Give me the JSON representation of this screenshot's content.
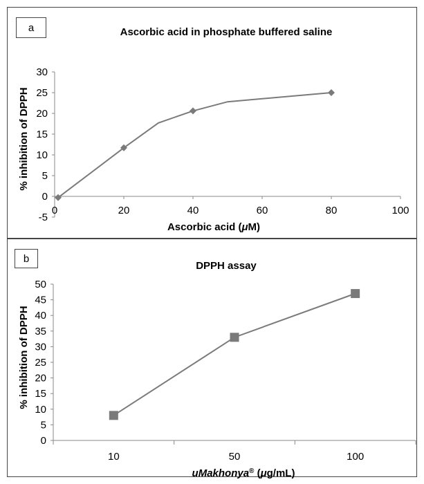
{
  "chart_data": [
    {
      "type": "line",
      "panel_label": "a",
      "title": "Ascorbic acid in phosphate buffered saline",
      "xlabel_main": "Ascorbic acid (",
      "xlabel_unit_mu": "μ",
      "xlabel_tail": "M)",
      "ylabel": "% inhibition of DPPH",
      "xlim": [
        0,
        100
      ],
      "ylim": [
        -5,
        30
      ],
      "xticks": [
        "0",
        "20",
        "40",
        "60",
        "80",
        "100"
      ],
      "yticks": [
        "30",
        "25",
        "20",
        "15",
        "10",
        "5",
        "0",
        "-5"
      ],
      "series": [
        {
          "x": [
            1,
            20,
            30,
            40,
            50,
            80
          ],
          "y": [
            -0.3,
            11.7,
            17.7,
            20.6,
            22.8,
            25.0
          ],
          "markers": [
            true,
            true,
            false,
            true,
            false,
            true
          ],
          "marker": "diamond"
        }
      ],
      "colors": {
        "line": "#7a7a7a",
        "marker": "#7a7a7a"
      },
      "grid": false
    },
    {
      "type": "line",
      "panel_label": "b",
      "title": "DPPH assay",
      "xlabel_main": "uMakhonya",
      "xlabel_reg": "®",
      "xlabel_tail_a": " (",
      "xlabel_unit_mu": "μ",
      "xlabel_tail_b": "g/mL)",
      "ylabel": "% inhibition of DPPH",
      "categories": [
        "10",
        "50",
        "100"
      ],
      "ylim": [
        0,
        50
      ],
      "yticks": [
        "50",
        "45",
        "40",
        "35",
        "30",
        "25",
        "20",
        "15",
        "10",
        "5",
        "0"
      ],
      "series": [
        {
          "values": [
            8,
            33,
            47
          ],
          "marker": "square"
        }
      ],
      "colors": {
        "line": "#7a7a7a",
        "marker": "#7a7a7a"
      },
      "grid": false
    }
  ]
}
